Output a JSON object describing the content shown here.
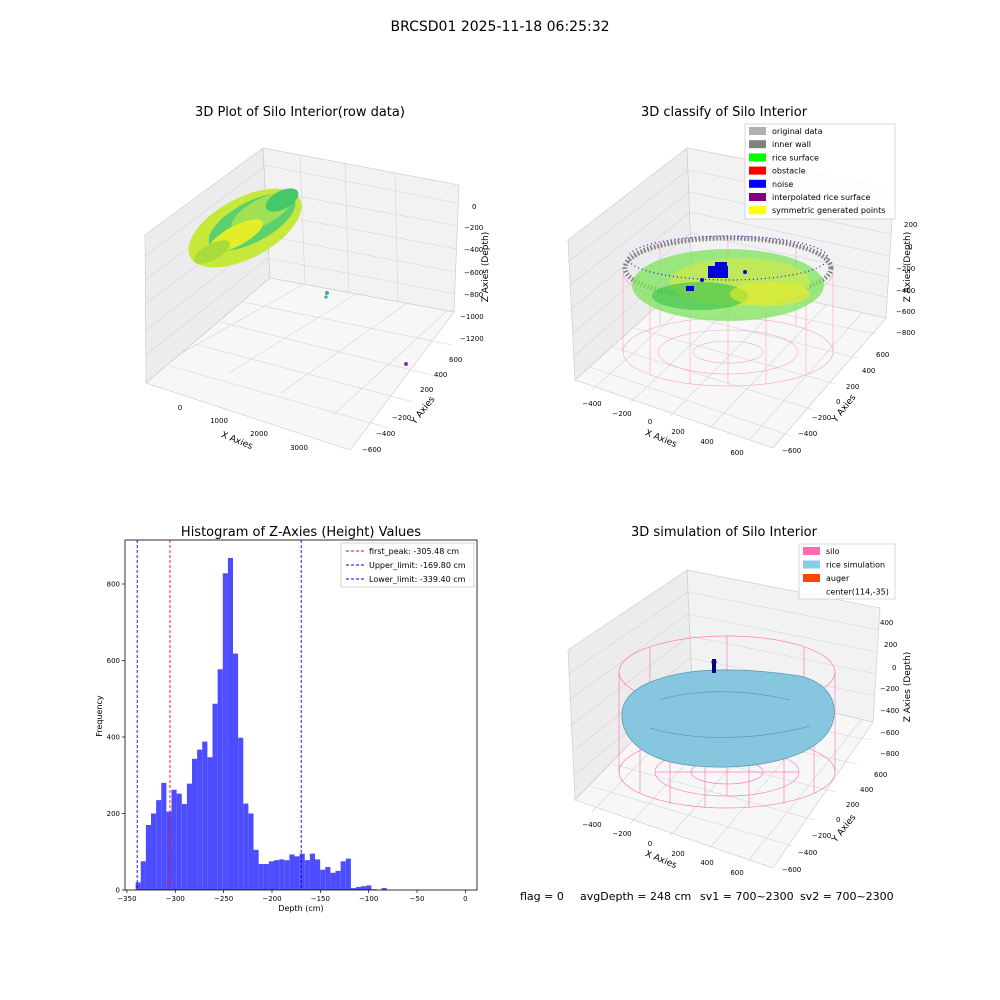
{
  "suptitle": "BRCSD01 2025-11-18 06:25:32",
  "colors": {
    "pane_side": "#ececec",
    "pane_back": "#f2f2f2",
    "pane_floor": "#f7f7f7",
    "grid": "#d4d4d4",
    "rice_yellow": "#c6e83a",
    "rice_green": "#3ec46b",
    "cyan_dot": "#4aa3a8",
    "purple_dot": "#7a3ca8",
    "silo_pink": "#ff69b4",
    "rice_blue": "#87c6df",
    "auger": "#ff4500",
    "navy": "#00007a",
    "hist_bar": "#4d4dff",
    "red_line": "#ff0000",
    "blue_line": "#0000ff"
  },
  "panels": {
    "raw": {
      "title": "3D Plot of Silo Interior(row data)",
      "x_label": "X Axies",
      "y_label": "Y Axies",
      "z_label": "Z Axies (Depth)",
      "x_ticks": [
        "0",
        "1000",
        "2000",
        "3000"
      ],
      "y_ticks": [
        "600",
        "400",
        "200",
        "−200",
        "−400",
        "−600"
      ],
      "z_ticks": [
        "0",
        "−200",
        "−400",
        "−600",
        "−800",
        "−1000",
        "−1200"
      ]
    },
    "classify": {
      "title": "3D classify of Silo Interior",
      "x_label": "X Axies",
      "y_label": "Y Axies",
      "z_label": "Z Axies (Depth)",
      "x_ticks": [
        "−400",
        "−200",
        "0",
        "200",
        "400",
        "600"
      ],
      "y_ticks": [
        "600",
        "400",
        "200",
        "0",
        "−200",
        "−400",
        "−600"
      ],
      "z_ticks": [
        "200",
        "0",
        "−200",
        "−400",
        "−600",
        "−800"
      ],
      "legend": [
        {
          "label": "original data",
          "color": "#b0b0b0"
        },
        {
          "label": "inner wall",
          "color": "#808080"
        },
        {
          "label": "rice surface",
          "color": "#00ff00"
        },
        {
          "label": "obstacle",
          "color": "#ff0000"
        },
        {
          "label": "noise",
          "color": "#0000ff"
        },
        {
          "label": "interpolated rice surface",
          "color": "#800080"
        },
        {
          "label": "symmetric generated points",
          "color": "#ffff00"
        }
      ]
    },
    "simulation": {
      "title": "3D simulation of Silo Interior",
      "x_label": "X Axies",
      "y_label": "Y Axies",
      "z_label": "Z Axies (Depth)",
      "x_ticks": [
        "−400",
        "−200",
        "0",
        "200",
        "400",
        "600"
      ],
      "y_ticks": [
        "600",
        "400",
        "200",
        "0",
        "−200",
        "−400",
        "−600"
      ],
      "z_ticks": [
        "400",
        "200",
        "0",
        "−200",
        "−400",
        "−600",
        "−800"
      ],
      "legend": [
        {
          "label": "silo",
          "color": "#ff69b4"
        },
        {
          "label": "rice simulation",
          "color": "#87ceeb"
        },
        {
          "label": "auger",
          "color": "#ff4500"
        },
        {
          "label": "center(114,-35)",
          "color": ""
        }
      ],
      "footer": {
        "flag": "flag = 0",
        "avg": "avgDepth = 248 cm",
        "sv1": "sv1 = 700~2300",
        "sv2": "sv2 = 700~2300"
      }
    }
  },
  "chart_data": {
    "type": "bar",
    "title": "Histogram of Z-Axies (Height) Values",
    "xlabel": "Depth (cm)",
    "ylabel": "Frequency",
    "xlim": [
      -352,
      12
    ],
    "ylim": [
      0,
      915
    ],
    "x_ticks": [
      -350,
      -300,
      -250,
      -200,
      -150,
      -100,
      -50,
      0
    ],
    "x_tick_labels": [
      "−350",
      "−300",
      "−250",
      "−200",
      "−150",
      "−100",
      "−50",
      "0"
    ],
    "y_ticks": [
      0,
      200,
      400,
      600,
      800
    ],
    "y_tick_labels": [
      "0",
      "200",
      "400",
      "600",
      "800"
    ],
    "bin_start": -341,
    "bin_width": 5.3,
    "values": [
      20,
      75,
      170,
      200,
      235,
      280,
      205,
      262,
      252,
      225,
      278,
      343,
      367,
      388,
      347,
      487,
      577,
      828,
      868,
      618,
      398,
      226,
      200,
      105,
      68,
      68,
      75,
      78,
      80,
      78,
      93,
      88,
      95,
      78,
      95,
      80,
      53,
      60,
      45,
      50,
      75,
      82,
      5,
      8,
      10,
      12,
      2,
      0,
      5
    ],
    "vlines": [
      {
        "name": "first_peak: -305.48 cm",
        "x": -305.48,
        "color": "#ff0000"
      },
      {
        "name": "Upper_limit: -169.80 cm",
        "x": -169.8,
        "color": "#0000ff"
      },
      {
        "name": "Lower_limit: -339.40 cm",
        "x": -339.4,
        "color": "#0000ff"
      }
    ],
    "legend_position": "top-right",
    "grid": false
  }
}
